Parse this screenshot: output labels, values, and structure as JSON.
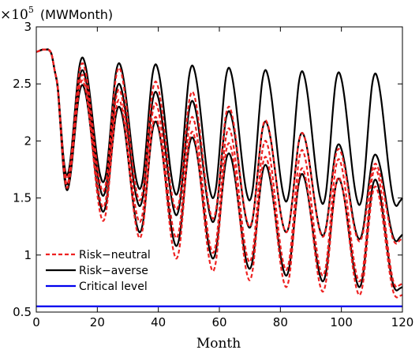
{
  "chart_data": {
    "type": "line",
    "xlabel": "Month",
    "y_scale_prefix": "×10",
    "y_scale_exponent": "5",
    "y_unit": "(MWMonth)",
    "xlim": [
      0,
      120
    ],
    "ylim": [
      0.5,
      3
    ],
    "x_ticks": [
      0,
      20,
      40,
      60,
      80,
      100,
      120
    ],
    "y_ticks": [
      0.5,
      1,
      1.5,
      2,
      2.5,
      3
    ],
    "y_tick_labels": [
      "0.5",
      "1",
      "1.5",
      "2",
      "2.5",
      "3"
    ],
    "grid": false,
    "legend_position": "bottom-left",
    "period_months": 12,
    "first_valley_month": 10,
    "first_peak_month": 15,
    "colors": {
      "risk_neutral": "#ee2222",
      "risk_averse": "#000000",
      "critical": "#0000ee"
    },
    "legend": [
      {
        "label": "Risk−neutral",
        "style": "dashed",
        "color": "#ee2222"
      },
      {
        "label": "Risk−averse",
        "style": "solid",
        "color": "#000000"
      },
      {
        "label": "Critical level",
        "style": "solid",
        "color": "#0000ee"
      }
    ],
    "critical_level": 0.55,
    "start_segment": {
      "x": [
        0,
        1,
        2,
        3,
        4,
        5,
        6
      ],
      "y": [
        2.78,
        2.79,
        2.8,
        2.8,
        2.8,
        2.76,
        2.62
      ]
    },
    "series": [
      {
        "name": "Risk−averse",
        "group": "risk_averse",
        "style": "solid",
        "extrema_months": [
          10,
          15,
          22,
          27,
          34,
          39,
          46,
          51,
          58,
          63,
          70,
          75,
          82,
          87,
          94,
          99,
          106,
          111,
          118,
          120
        ],
        "extrema_values": [
          1.7,
          2.73,
          1.64,
          2.68,
          1.58,
          2.67,
          1.53,
          2.66,
          1.5,
          2.64,
          1.48,
          2.62,
          1.47,
          2.61,
          1.45,
          2.6,
          1.44,
          2.59,
          1.43,
          1.5
        ]
      },
      {
        "name": "Risk−averse",
        "group": "risk_averse",
        "style": "solid",
        "extrema_months": [
          10,
          15,
          22,
          27,
          34,
          39,
          46,
          51,
          58,
          63,
          70,
          75,
          82,
          87,
          94,
          99,
          106,
          111,
          118,
          120
        ],
        "extrema_values": [
          1.62,
          2.62,
          1.52,
          2.5,
          1.43,
          2.43,
          1.35,
          2.35,
          1.29,
          2.26,
          1.24,
          2.17,
          1.2,
          2.07,
          1.17,
          1.97,
          1.14,
          1.88,
          1.12,
          1.18
        ]
      },
      {
        "name": "Risk−averse",
        "group": "risk_averse",
        "style": "solid",
        "extrema_months": [
          10,
          15,
          22,
          27,
          34,
          39,
          46,
          51,
          58,
          63,
          70,
          75,
          82,
          87,
          94,
          99,
          106,
          111,
          118,
          120
        ],
        "extrema_values": [
          1.57,
          2.49,
          1.38,
          2.3,
          1.2,
          2.17,
          1.08,
          2.03,
          0.97,
          1.89,
          0.88,
          1.79,
          0.82,
          1.71,
          0.77,
          1.67,
          0.72,
          1.66,
          0.69,
          0.72
        ]
      },
      {
        "name": "Risk−neutral",
        "group": "risk_neutral",
        "style": "dashed",
        "extrema_months": [
          10,
          15,
          22,
          27,
          34,
          39,
          46,
          51,
          58,
          63,
          70,
          75,
          82,
          87,
          94,
          99,
          106,
          111,
          118,
          120
        ],
        "extrema_values": [
          1.67,
          2.68,
          1.56,
          2.64,
          1.48,
          2.52,
          1.4,
          2.43,
          1.32,
          2.3,
          1.25,
          2.18,
          1.2,
          2.07,
          1.16,
          1.93,
          1.12,
          1.8,
          1.1,
          1.15
        ]
      },
      {
        "name": "Risk−neutral",
        "group": "risk_neutral",
        "style": "dashed",
        "extrema_months": [
          10,
          15,
          22,
          27,
          34,
          39,
          46,
          51,
          58,
          63,
          70,
          75,
          82,
          87,
          94,
          99,
          106,
          111,
          118,
          120
        ],
        "extrema_values": [
          1.62,
          2.58,
          1.42,
          2.45,
          1.29,
          2.33,
          1.15,
          2.21,
          1.02,
          2.11,
          0.94,
          2.0,
          0.87,
          1.92,
          0.82,
          1.84,
          0.77,
          1.76,
          0.72,
          0.75
        ]
      },
      {
        "name": "Risk−neutral",
        "group": "risk_neutral",
        "style": "dashed",
        "extrema_months": [
          10,
          15,
          22,
          27,
          34,
          39,
          46,
          51,
          58,
          63,
          70,
          75,
          82,
          87,
          94,
          99,
          106,
          111,
          118,
          120
        ],
        "extrema_values": [
          1.59,
          2.53,
          1.3,
          2.36,
          1.15,
          2.21,
          0.97,
          2.08,
          0.86,
          1.98,
          0.78,
          1.86,
          0.72,
          1.76,
          0.68,
          1.68,
          0.65,
          1.6,
          0.63,
          0.65
        ]
      }
    ]
  }
}
